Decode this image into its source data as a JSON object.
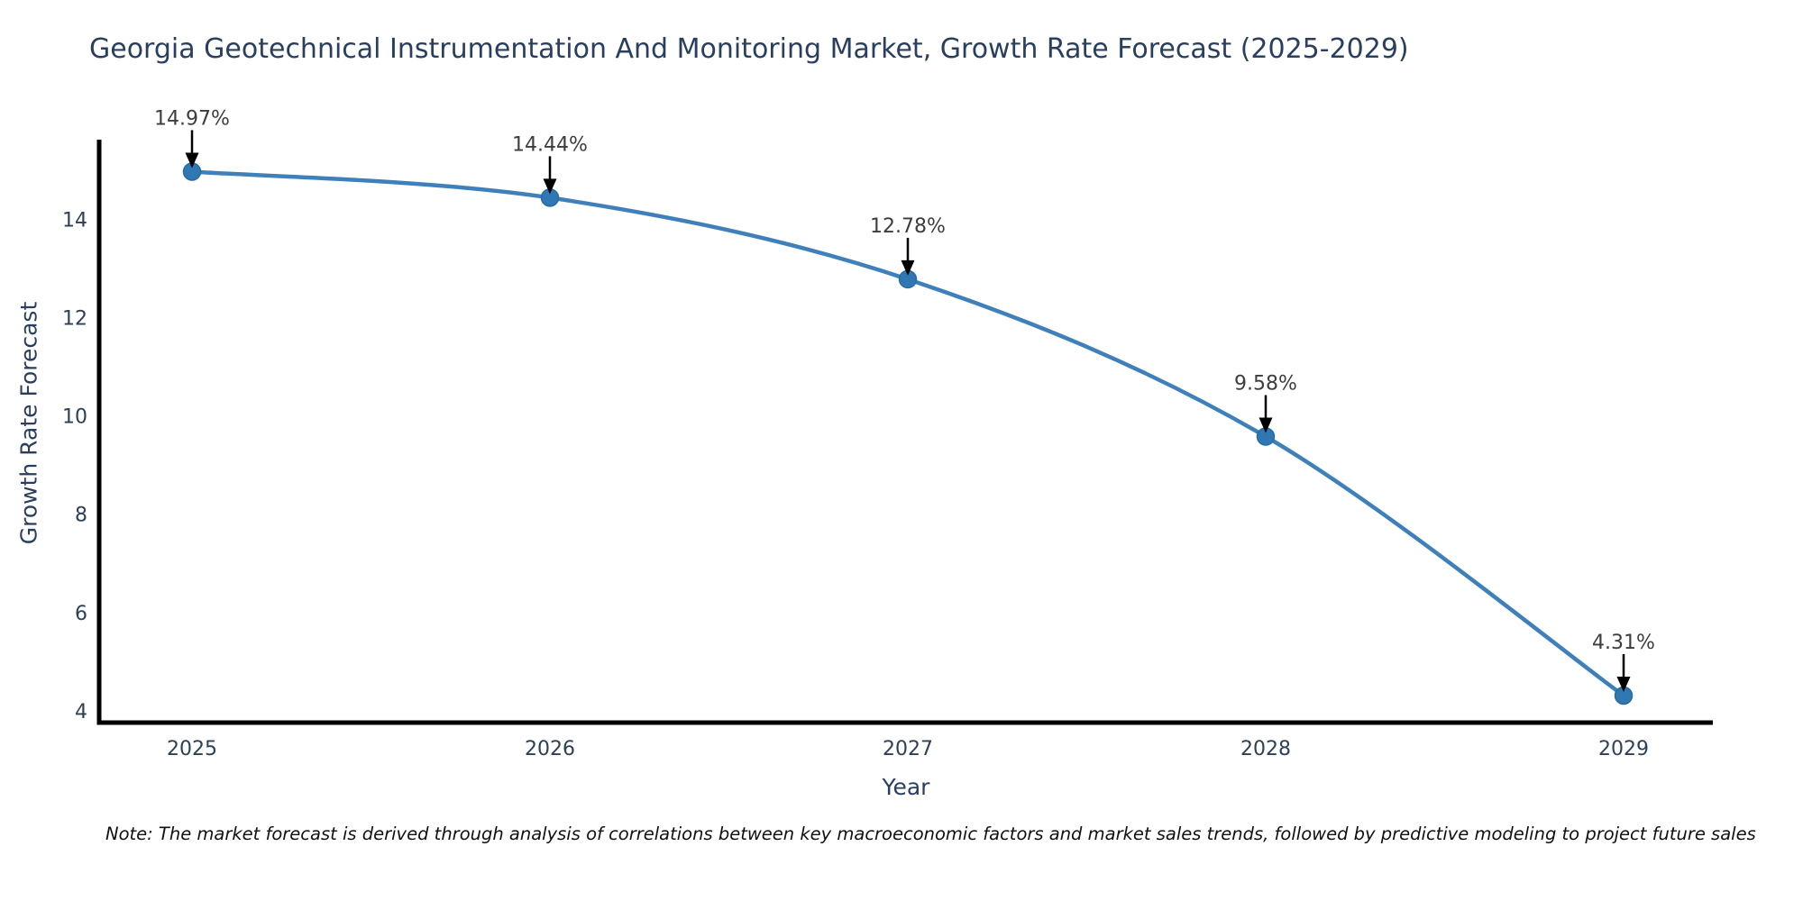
{
  "title": "Georgia Geotechnical Instrumentation And Monitoring Market, Growth Rate Forecast (2025-2029)",
  "note": "Note: The market forecast is derived through analysis of correlations between key macroeconomic factors and market sales trends, followed by predictive modeling to project future sales",
  "chart_data": {
    "type": "line",
    "title": "Georgia Geotechnical Instrumentation And Monitoring Market, Growth Rate Forecast (2025-2029)",
    "x": [
      2025,
      2026,
      2027,
      2028,
      2029
    ],
    "values": [
      14.97,
      14.44,
      12.78,
      9.58,
      4.31
    ],
    "point_labels": [
      "14.97%",
      "14.44%",
      "12.78%",
      "9.58%",
      "4.31%"
    ],
    "xlabel": "Year",
    "ylabel": "Growth Rate Forecast",
    "yticks": [
      4,
      6,
      8,
      10,
      12,
      14
    ],
    "ylim": [
      3.76,
      15.62
    ],
    "line_shape": "spline",
    "grid": false,
    "legend": "none",
    "annotations_have_arrows": true,
    "colors": {
      "line": "#3f80ba",
      "marker_fill": "#2f78b3",
      "marker_edge": "#2a6ba0",
      "axis_line": "#000000",
      "title_text": "#2a3f5f",
      "tick_text": "#2e4055",
      "annotation_text": "#3d3d3d",
      "arrow": "#000000",
      "background": "#ffffff"
    }
  }
}
